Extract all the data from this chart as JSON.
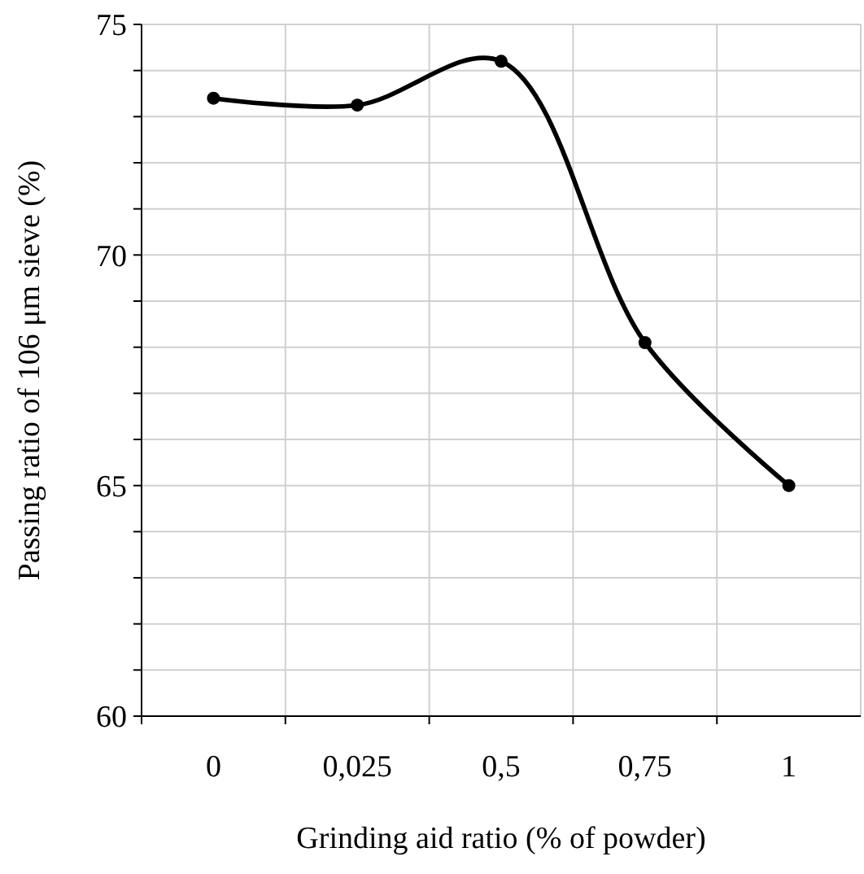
{
  "chart_data": {
    "type": "line",
    "xlabel": "Grinding aid ratio (% of powder)",
    "ylabel": "Passing ratio of 106 μm sieve (%)",
    "categories": [
      "0",
      "0,025",
      "0,5",
      "0,75",
      "1"
    ],
    "values": [
      73.4,
      73.25,
      74.2,
      68.1,
      65.0
    ],
    "color": "#000000",
    "marker": "circle",
    "ylim": [
      60,
      75
    ],
    "yticks": [
      60,
      {
        "value": 61,
        "label": null
      },
      {
        "value": 62,
        "label": null
      },
      {
        "value": 63,
        "label": null
      },
      {
        "value": 64,
        "label": null
      },
      65,
      {
        "value": 66,
        "label": null
      },
      {
        "value": 67,
        "label": null
      },
      {
        "value": 68,
        "label": null
      },
      {
        "value": 69,
        "label": null
      },
      70,
      {
        "value": 71,
        "label": null
      },
      {
        "value": 72,
        "label": null
      },
      {
        "value": 73,
        "label": null
      },
      {
        "value": 74,
        "label": null
      },
      75
    ],
    "grid": true
  }
}
